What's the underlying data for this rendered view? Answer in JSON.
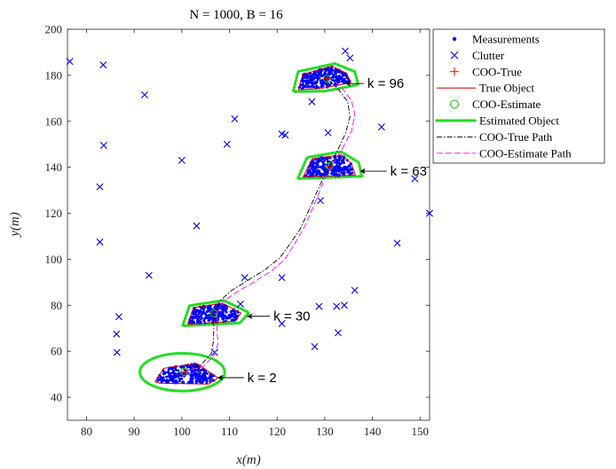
{
  "chart_data": {
    "type": "scatter",
    "title": "N = 1000, B = 16",
    "xlabel": "x(m)",
    "ylabel": "y(m)",
    "xlim": [
      76,
      152
    ],
    "ylim": [
      30,
      200
    ],
    "xticks": [
      80,
      90,
      100,
      110,
      120,
      130,
      140,
      150
    ],
    "yticks": [
      40,
      60,
      80,
      100,
      120,
      140,
      160,
      180,
      200
    ],
    "grid": false,
    "legend_position": "outside-right",
    "legend": [
      "Measurements",
      "Clutter",
      "COO-True",
      "True Object",
      "COO-Estimate",
      "Estimated Object",
      "COO-True Path",
      "COO-Estimate Path"
    ],
    "colors": {
      "measurements": "#0000ff",
      "clutter": "#0000ff",
      "coo_true": "#ff0000",
      "true_object": "#cc0000",
      "coo_estimate": "#00cc00",
      "estimated_object": "#22dd22",
      "true_path": "#000000",
      "estimate_path": "#ff00ff"
    },
    "clutter": [
      [
        76.5,
        186
      ],
      [
        83.5,
        184.5
      ],
      [
        92.2,
        171.5
      ],
      [
        83.6,
        149.5
      ],
      [
        82.8,
        131.5
      ],
      [
        82.8,
        107.5
      ],
      [
        93.1,
        93
      ],
      [
        86.8,
        75
      ],
      [
        86.3,
        67.5
      ],
      [
        86.4,
        59.5
      ],
      [
        100,
        143
      ],
      [
        103.1,
        114.5
      ],
      [
        109.5,
        150
      ],
      [
        111.1,
        161
      ],
      [
        113.2,
        92
      ],
      [
        112.3,
        80.5
      ],
      [
        121,
        154.5
      ],
      [
        121.7,
        154
      ],
      [
        121,
        92
      ],
      [
        121,
        72
      ],
      [
        127.3,
        168.5
      ],
      [
        129.1,
        125.5
      ],
      [
        130.7,
        155
      ],
      [
        134.3,
        190.5
      ],
      [
        135.3,
        187.5
      ],
      [
        141.9,
        157.5
      ],
      [
        148.9,
        135
      ],
      [
        152,
        120
      ],
      [
        145.2,
        107
      ],
      [
        136.3,
        86.5
      ],
      [
        134.1,
        80
      ],
      [
        132.5,
        79.5
      ],
      [
        128.8,
        79.5
      ],
      [
        132.8,
        68
      ],
      [
        127.9,
        62
      ],
      [
        106.9,
        59.5
      ]
    ],
    "objects": [
      {
        "label": "k = 2",
        "k": 2,
        "center": [
          100.5,
          51
        ],
        "arrow_from": [
          113,
          48.5
        ],
        "arrow_to": [
          107.5,
          48.5
        ],
        "true_object": [
          [
            94.4,
            46.7
          ],
          [
            96.2,
            52.6
          ],
          [
            103.1,
            54.7
          ],
          [
            107.6,
            48.4
          ],
          [
            105.6,
            45.7
          ],
          [
            95.5,
            46.1
          ]
        ],
        "estimated_object": {
          "type": "ellipse",
          "center": [
            100.1,
            50.9
          ],
          "rx": 8.9,
          "ry": 8.2
        },
        "cloud": {
          "x": [
            94.8,
            107.2
          ],
          "y": [
            46.2,
            54.5
          ]
        }
      },
      {
        "label": "k = 30",
        "k": 30,
        "center": [
          106.7,
          76.5
        ],
        "arrow_from": [
          118.5,
          75.2
        ],
        "arrow_to": [
          113.7,
          75.2
        ],
        "true_object": [
          [
            101.3,
            71.8
          ],
          [
            102.4,
            78.9
          ],
          [
            108.5,
            80.9
          ],
          [
            112.4,
            76.6
          ],
          [
            111.2,
            73.1
          ],
          [
            101.6,
            71.7
          ]
        ],
        "estimated_object": {
          "type": "polygon",
          "points": [
            [
              100.2,
              71.3
            ],
            [
              101.6,
              79.8
            ],
            [
              108.8,
              82.1
            ],
            [
              114.1,
              76.8
            ],
            [
              112.2,
              72.3
            ],
            [
              100.4,
              71.1
            ]
          ]
        },
        "cloud": {
          "x": [
            101.4,
            112.2
          ],
          "y": [
            71.9,
            80.5
          ]
        }
      },
      {
        "label": "k = 63",
        "k": 63,
        "center": [
          131,
          140.5
        ],
        "arrow_from": [
          143,
          138.3
        ],
        "arrow_to": [
          137.4,
          138.3
        ],
        "true_object": [
          [
            125.5,
            135.8
          ],
          [
            127.4,
            143.7
          ],
          [
            133.5,
            145.4
          ],
          [
            135.6,
            141.6
          ],
          [
            136.4,
            136.6
          ],
          [
            125.6,
            135.8
          ]
        ],
        "estimated_object": {
          "type": "polygon",
          "points": [
            [
              124.4,
              135.3
            ],
            [
              126.3,
              144.3
            ],
            [
              133.4,
              146.8
            ],
            [
              137.1,
              142.1
            ],
            [
              137.8,
              136.1
            ],
            [
              124.5,
              135.1
            ]
          ]
        },
        "cloud": {
          "x": [
            125.7,
            135.8
          ],
          "y": [
            136,
            145
          ]
        }
      },
      {
        "label": "k = 96",
        "k": 96,
        "center": [
          130.5,
          178.5
        ],
        "arrow_from": [
          138.2,
          176.4
        ],
        "arrow_to": [
          134.3,
          176.4
        ],
        "true_object": [
          [
            124.5,
            174.1
          ],
          [
            125.4,
            180.4
          ],
          [
            131.5,
            184
          ],
          [
            134.6,
            180.8
          ],
          [
            135.4,
            176.7
          ],
          [
            129.1,
            174.2
          ],
          [
            124.5,
            173.7
          ]
        ],
        "estimated_object": {
          "type": "polygon",
          "points": [
            [
              123.4,
              173.2
            ],
            [
              124.4,
              181.6
            ],
            [
              132.1,
              185.1
            ],
            [
              136.3,
              181.6
            ],
            [
              137,
              175.9
            ],
            [
              130.1,
              173.1
            ],
            [
              123.5,
              172.9
            ]
          ]
        },
        "cloud": {
          "x": [
            124.6,
            135.3
          ],
          "y": [
            174.1,
            183.8
          ]
        }
      }
    ],
    "true_path": [
      [
        100.5,
        51
      ],
      [
        104,
        54
      ],
      [
        106.2,
        59
      ],
      [
        106.6,
        64
      ],
      [
        106.7,
        69
      ],
      [
        106.7,
        76.5
      ],
      [
        108,
        82
      ],
      [
        110.5,
        86.5
      ],
      [
        114,
        91
      ],
      [
        117.5,
        95.5
      ],
      [
        120.5,
        100.5
      ],
      [
        122.5,
        106
      ],
      [
        124.8,
        113
      ],
      [
        126.6,
        121
      ],
      [
        128.2,
        128.5
      ],
      [
        129.5,
        134.5
      ],
      [
        131,
        140.5
      ],
      [
        132.6,
        147
      ],
      [
        134.4,
        155
      ],
      [
        135.3,
        162
      ],
      [
        134.8,
        168.5
      ],
      [
        132.8,
        174
      ],
      [
        130.5,
        178.5
      ]
    ],
    "estimate_path": [
      [
        100.1,
        50.9
      ],
      [
        104.6,
        53.5
      ],
      [
        106.9,
        58.5
      ],
      [
        107.6,
        63.5
      ],
      [
        107.4,
        68.5
      ],
      [
        107.4,
        76.8
      ],
      [
        108.6,
        81.5
      ],
      [
        111.6,
        85.8
      ],
      [
        115.4,
        90.4
      ],
      [
        118.9,
        95
      ],
      [
        121.7,
        100.2
      ],
      [
        123.6,
        106.4
      ],
      [
        125.6,
        113.5
      ],
      [
        127.3,
        121.4
      ],
      [
        128.8,
        129
      ],
      [
        130,
        135
      ],
      [
        131.6,
        141
      ],
      [
        133.6,
        147.8
      ],
      [
        135.6,
        155.6
      ],
      [
        136.3,
        163
      ],
      [
        135.6,
        169
      ],
      [
        133.6,
        174.6
      ],
      [
        131.2,
        179
      ]
    ]
  }
}
